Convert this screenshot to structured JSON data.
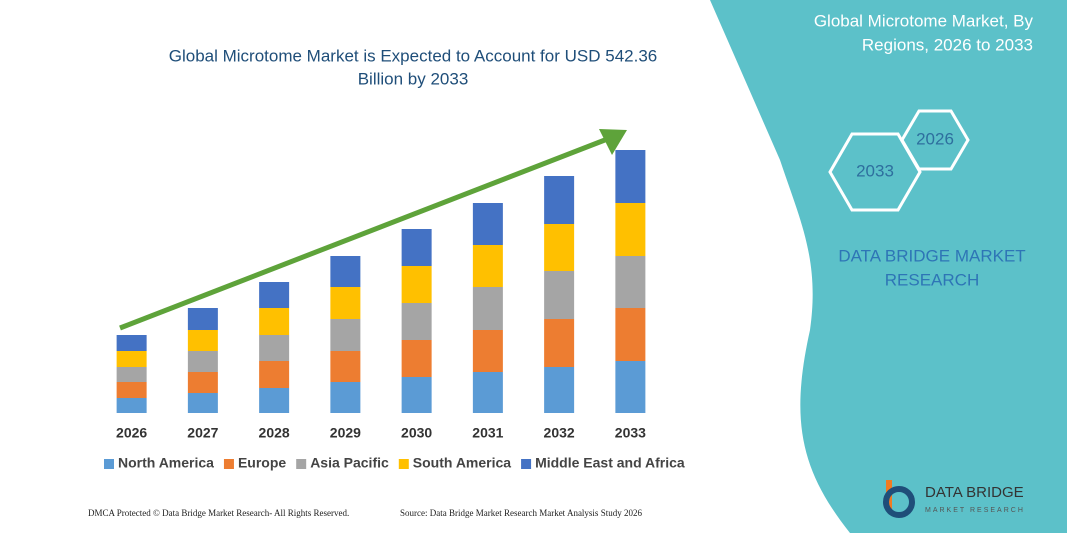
{
  "chart_data": {
    "type": "bar",
    "stacked": true,
    "title": [
      "Global Microtome Market is Expected to Account for USD 542.36",
      "Billion by 2033"
    ],
    "categories": [
      "2026",
      "2027",
      "2028",
      "2029",
      "2030",
      "2031",
      "2032",
      "2033"
    ],
    "series": [
      {
        "name": "North America",
        "color": "#5b9bd5",
        "values": [
          15,
          20,
          25,
          31,
          36,
          41,
          46,
          52
        ]
      },
      {
        "name": "Europe",
        "color": "#ed7d31",
        "values": [
          16,
          21,
          27,
          31,
          37,
          42,
          48,
          53
        ]
      },
      {
        "name": "Asia Pacific",
        "color": "#a5a5a5",
        "values": [
          15,
          21,
          26,
          32,
          37,
          43,
          48,
          52
        ]
      },
      {
        "name": "South America",
        "color": "#ffc000",
        "values": [
          16,
          21,
          27,
          32,
          37,
          42,
          47,
          53
        ]
      },
      {
        "name": "Middle East and Africa",
        "color": "#4472c4",
        "values": [
          16,
          22,
          26,
          31,
          37,
          42,
          48,
          53
        ]
      }
    ]
  },
  "panel": {
    "title": [
      "Global Microtome Market, By",
      "Regions, 2026 to 2033"
    ],
    "hexagons": [
      "2026",
      "2033"
    ],
    "brand": [
      "DATA BRIDGE MARKET",
      "RESEARCH"
    ]
  },
  "logo": {
    "name": "DATA BRIDGE",
    "tagline": "MARKET RESEARCH"
  },
  "footer": {
    "left": "DMCA Protected © Data Bridge Market Research- All Rights Reserved.",
    "right": "Source: Data Bridge Market Research Market Analysis Study 2026"
  }
}
